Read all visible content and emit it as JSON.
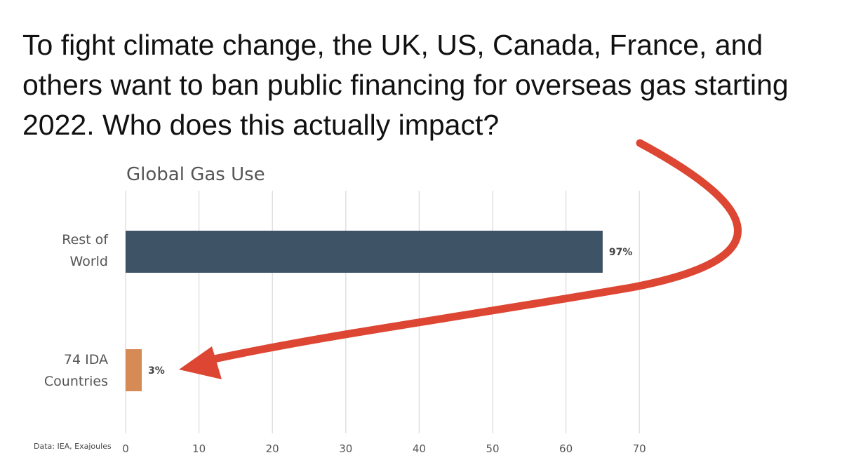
{
  "headline": "To fight climate change, the UK, US, Canada, France, and others want to ban public financing for overseas gas starting 2022. Who does this actually impact?",
  "source_note": "Data: IEA, Exajoules",
  "colors": {
    "rest_of_world": "#3e5366",
    "ida": "#d68a55",
    "arrow": "#dc4633",
    "grid": "#d9d9d9"
  },
  "chart_data": {
    "type": "bar",
    "orientation": "horizontal",
    "title": "Global Gas Use",
    "categories": [
      {
        "label_lines": [
          "Rest of",
          "World"
        ]
      },
      {
        "label_lines": [
          "74 IDA",
          "Countries"
        ]
      }
    ],
    "values": [
      65,
      2.2
    ],
    "data_labels": [
      "97%",
      "3%"
    ],
    "xlim": [
      0,
      70
    ],
    "xticks": [
      0,
      10,
      20,
      30,
      40,
      50,
      60,
      70
    ],
    "grid": true,
    "legend": "none"
  }
}
